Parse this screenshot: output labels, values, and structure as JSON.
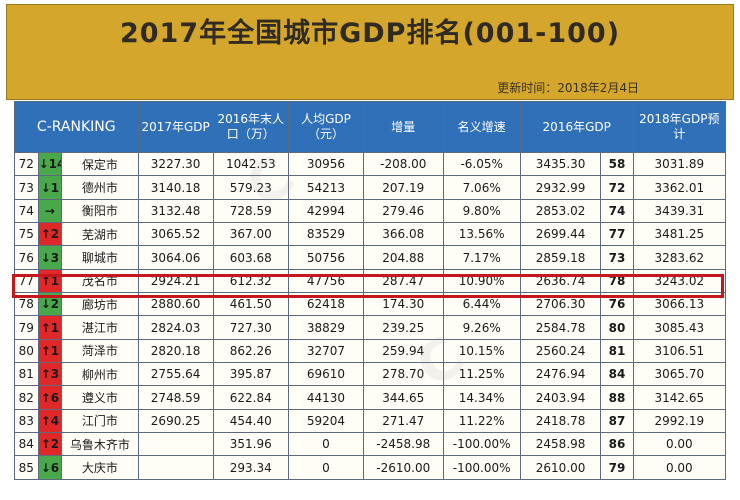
{
  "banner": {
    "title": "2017年全国城市GDP排名(001-100)",
    "update": "更新时间：2018年2月4日"
  },
  "headers": {
    "cranking": "C-RANKING",
    "gdp2017": "2017年GDP",
    "pop2016": "2016年末人口（万）",
    "per_capita": "人均GDP（元）",
    "increase": "增量",
    "growth": "名义增速",
    "gdp2016": "2016年GDP",
    "pred2018": "2018年GDP预计"
  },
  "rows": [
    {
      "rank": "72",
      "change": "↓14",
      "dir": "down",
      "city": "保定市",
      "gdp2017": "3227.30",
      "pop": "1042.53",
      "per": "30956",
      "inc": "-208.00",
      "growth": "-6.05%",
      "gdp2016": "3435.30",
      "r2016": "58",
      "pred": "3031.89"
    },
    {
      "rank": "73",
      "change": "↓1",
      "dir": "down",
      "city": "德州市",
      "gdp2017": "3140.18",
      "pop": "579.23",
      "per": "54213",
      "inc": "207.19",
      "growth": "7.06%",
      "gdp2016": "2932.99",
      "r2016": "72",
      "pred": "3362.01"
    },
    {
      "rank": "74",
      "change": "→",
      "dir": "flat",
      "city": "衡阳市",
      "gdp2017": "3132.48",
      "pop": "728.59",
      "per": "42994",
      "inc": "279.46",
      "growth": "9.80%",
      "gdp2016": "2853.02",
      "r2016": "74",
      "pred": "3439.31"
    },
    {
      "rank": "75",
      "change": "↑2",
      "dir": "up",
      "city": "芜湖市",
      "gdp2017": "3065.52",
      "pop": "367.00",
      "per": "83529",
      "inc": "366.08",
      "growth": "13.56%",
      "gdp2016": "2699.44",
      "r2016": "77",
      "pred": "3481.25"
    },
    {
      "rank": "76",
      "change": "↓3",
      "dir": "down",
      "city": "聊城市",
      "gdp2017": "3064.06",
      "pop": "603.68",
      "per": "50756",
      "inc": "204.88",
      "growth": "7.17%",
      "gdp2016": "2859.18",
      "r2016": "73",
      "pred": "3283.62"
    },
    {
      "rank": "77",
      "change": "↑1",
      "dir": "up",
      "city": "茂名市",
      "gdp2017": "2924.21",
      "pop": "612.32",
      "per": "47756",
      "inc": "287.47",
      "growth": "10.90%",
      "gdp2016": "2636.74",
      "r2016": "78",
      "pred": "3243.02"
    },
    {
      "rank": "78",
      "change": "↓2",
      "dir": "down",
      "city": "廊坊市",
      "gdp2017": "2880.60",
      "pop": "461.50",
      "per": "62418",
      "inc": "174.30",
      "growth": "6.44%",
      "gdp2016": "2706.30",
      "r2016": "76",
      "pred": "3066.13"
    },
    {
      "rank": "79",
      "change": "↑1",
      "dir": "up",
      "city": "湛江市",
      "gdp2017": "2824.03",
      "pop": "727.30",
      "per": "38829",
      "inc": "239.25",
      "growth": "9.26%",
      "gdp2016": "2584.78",
      "r2016": "80",
      "pred": "3085.43"
    },
    {
      "rank": "80",
      "change": "↑1",
      "dir": "up",
      "city": "菏泽市",
      "gdp2017": "2820.18",
      "pop": "862.26",
      "per": "32707",
      "inc": "259.94",
      "growth": "10.15%",
      "gdp2016": "2560.24",
      "r2016": "81",
      "pred": "3106.51"
    },
    {
      "rank": "81",
      "change": "↑3",
      "dir": "up",
      "city": "柳州市",
      "gdp2017": "2755.64",
      "pop": "395.87",
      "per": "69610",
      "inc": "278.70",
      "growth": "11.25%",
      "gdp2016": "2476.94",
      "r2016": "84",
      "pred": "3065.70"
    },
    {
      "rank": "82",
      "change": "↑6",
      "dir": "up",
      "city": "遵义市",
      "gdp2017": "2748.59",
      "pop": "622.84",
      "per": "44130",
      "inc": "344.65",
      "growth": "14.34%",
      "gdp2016": "2403.94",
      "r2016": "88",
      "pred": "3142.65"
    },
    {
      "rank": "83",
      "change": "↑4",
      "dir": "up",
      "city": "江门市",
      "gdp2017": "2690.25",
      "pop": "454.40",
      "per": "59204",
      "inc": "271.47",
      "growth": "11.22%",
      "gdp2016": "2418.78",
      "r2016": "87",
      "pred": "2992.19"
    },
    {
      "rank": "84",
      "change": "↑2",
      "dir": "up",
      "city": "乌鲁木齐市",
      "gdp2017": "",
      "pop": "351.96",
      "per": "0",
      "inc": "-2458.98",
      "growth": "-100.00%",
      "gdp2016": "2458.98",
      "r2016": "86",
      "pred": "0.00"
    },
    {
      "rank": "85",
      "change": "↓6",
      "dir": "down",
      "city": "大庆市",
      "gdp2017": "",
      "pop": "293.34",
      "per": "0",
      "inc": "-2610.00",
      "growth": "-100.00%",
      "gdp2016": "2610.00",
      "r2016": "79",
      "pred": "0.00"
    }
  ],
  "colors": {
    "banner": "#d4a72c",
    "header": "#2f70b8",
    "up": "#e02828",
    "down": "#48a84a",
    "highlight_border": "#c4181e"
  }
}
